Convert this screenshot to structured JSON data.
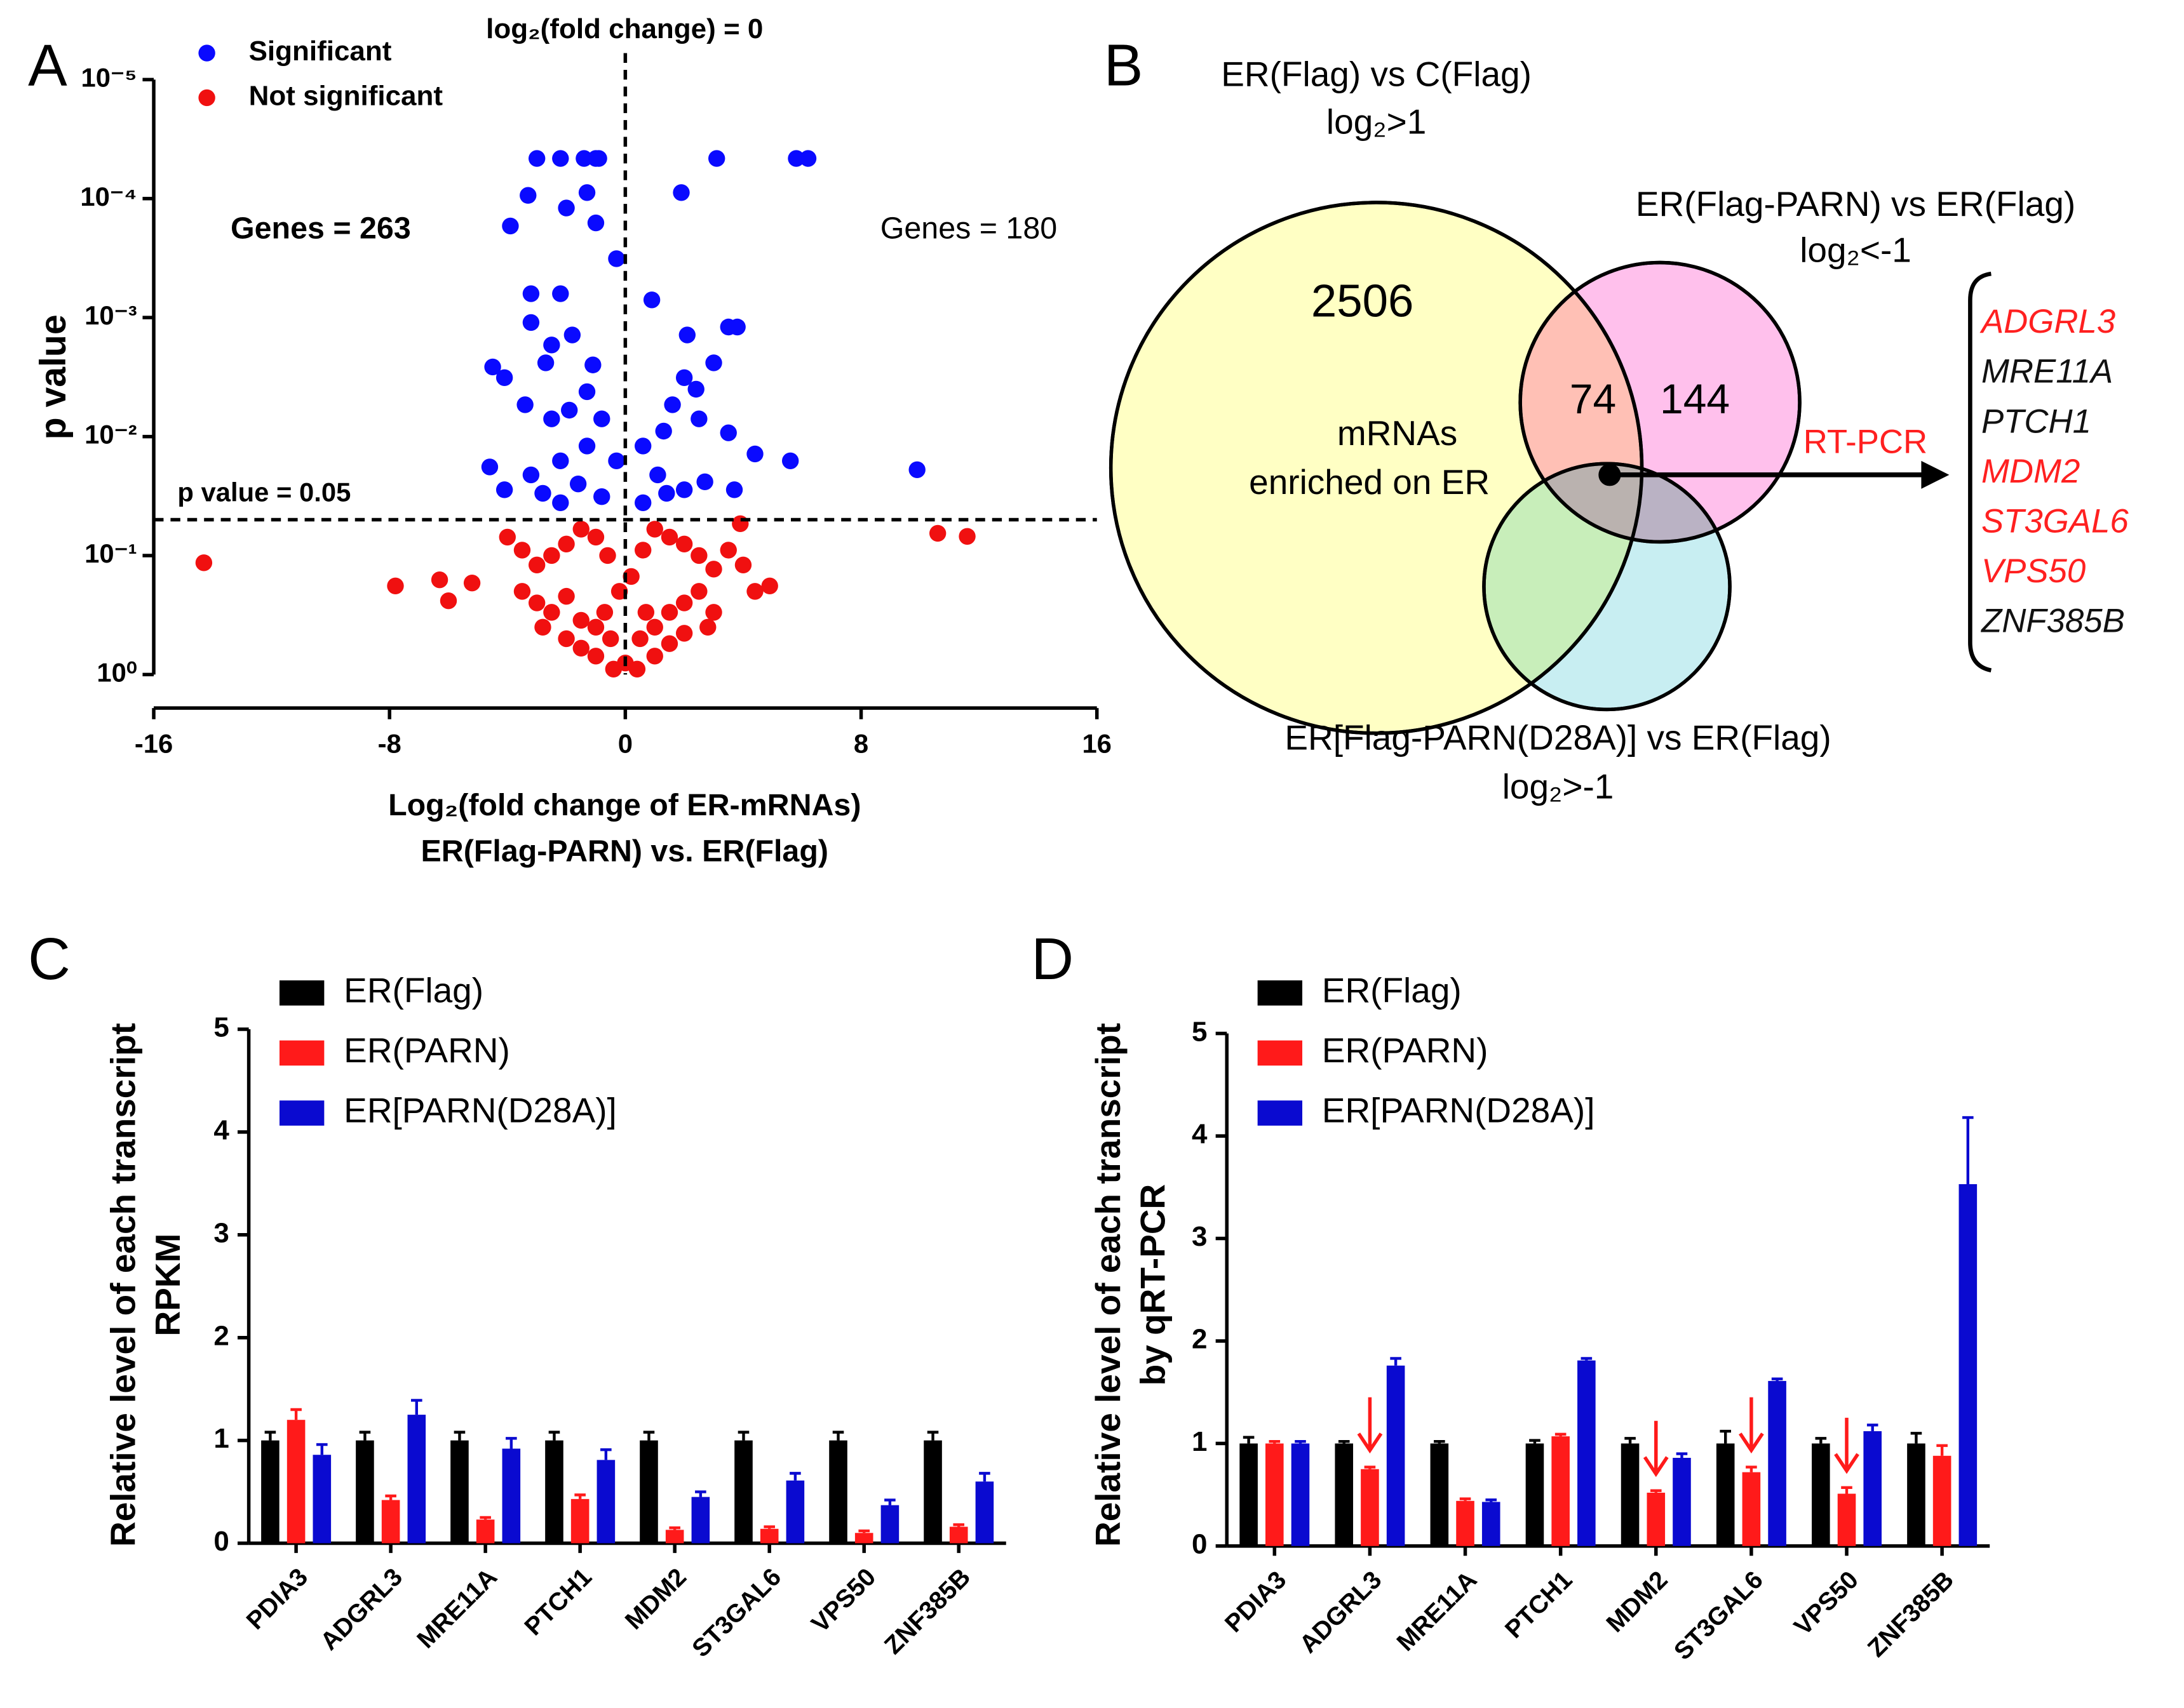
{
  "chart_data": [
    {
      "type": "scatter",
      "panel": "A",
      "xlabel": "Log₂(fold change of ER-mRNAs)",
      "xlabel2": "ER(Flag-PARN) vs. ER(Flag)",
      "ylabel": "p value",
      "log_y": true,
      "xlim": [
        -16,
        16
      ],
      "ylim": [
        1,
        1e-05
      ],
      "xticks": [
        -16,
        -8,
        0,
        8,
        16
      ],
      "yticks": [
        {
          "value": 1,
          "label": "10⁰"
        },
        {
          "value": 0.1,
          "label": "10⁻¹"
        },
        {
          "value": 0.01,
          "label": "10⁻²"
        },
        {
          "value": 0.001,
          "label": "10⁻³"
        },
        {
          "value": 0.0001,
          "label": "10⁻⁴"
        },
        {
          "value": 1e-05,
          "label": "10⁻⁵"
        }
      ],
      "threshold": {
        "label": "p value = 0.05",
        "value": 0.05
      },
      "zero_line": {
        "label": "log₂(fold change) = 0",
        "value": 0
      },
      "annotations": [
        "Genes = 263",
        "Genes = 180"
      ],
      "series": [
        {
          "name": "Significant",
          "color": "#0a0aff",
          "x": [
            -3.0,
            -2.2,
            -1.4,
            -1.0,
            -0.9,
            3.1,
            5.8,
            6.2,
            1.9,
            -1.3,
            -3.9,
            -3.3,
            -2.0,
            -1.0,
            -0.3,
            -3.2,
            -2.2,
            -3.2,
            -1.8,
            -2.7,
            -4.5,
            -4.1,
            -3.4,
            -2.5,
            -1.3,
            -0.8,
            0.9,
            2.1,
            3.5,
            3.8,
            3.0,
            2.0,
            1.6,
            2.5,
            3.5,
            4.4,
            5.6,
            9.9,
            -4.6,
            -4.1,
            -3.2,
            -2.2,
            -1.3,
            -0.3,
            0.6,
            1.1,
            2.0,
            2.7,
            -0.8,
            -2.2,
            0.6,
            3.7,
            -1.6,
            -2.8,
            1.4,
            -1.9,
            -1.1,
            1.3,
            -2.5,
            2.4
          ],
          "values": [
            4.6e-05,
            4.6e-05,
            4.6e-05,
            4.6e-05,
            4.6e-05,
            4.6e-05,
            4.6e-05,
            4.6e-05,
            8.9e-05,
            8.9e-05,
            0.00017,
            9.4e-05,
            0.00012,
            0.00016,
            0.00032,
            0.00063,
            0.00063,
            0.0011,
            0.0014,
            0.0024,
            0.0026,
            0.0032,
            0.0054,
            0.0071,
            0.0042,
            0.0071,
            0.00071,
            0.0014,
            0.0012,
            0.0012,
            0.0024,
            0.0032,
            0.0054,
            0.0071,
            0.0093,
            0.014,
            0.016,
            0.019,
            0.018,
            0.028,
            0.021,
            0.016,
            0.012,
            0.016,
            0.012,
            0.021,
            0.028,
            0.024,
            0.032,
            0.036,
            0.036,
            0.028,
            0.025,
            0.03,
            0.03,
            0.006,
            0.0025,
            0.009,
            0.0017,
            0.004
          ]
        },
        {
          "name": "Not significant",
          "color": "#f01010",
          "x": [
            -14.3,
            -7.8,
            -6.3,
            -6.0,
            -5.2,
            10.6,
            11.6,
            4.4,
            4.9,
            3.9,
            -4,
            -3.5,
            -3,
            -2.5,
            -2,
            -1.5,
            -1,
            -0.6,
            0.6,
            1,
            1.5,
            2,
            2.5,
            3,
            3.5,
            4,
            -3.5,
            -3,
            -2.5,
            -2,
            -1.5,
            -1,
            -0.5,
            0,
            0.5,
            1,
            1.5,
            2,
            2.5,
            3,
            -2,
            -1.5,
            -1,
            -0.4,
            0.4,
            1,
            1.5,
            2,
            -2.8,
            2.8,
            -0.2,
            0.2,
            -0.7,
            0.7
          ],
          "values": [
            0.115,
            0.18,
            0.16,
            0.24,
            0.17,
            0.065,
            0.069,
            0.2,
            0.18,
            0.054,
            0.07,
            0.09,
            0.12,
            0.1,
            0.08,
            0.06,
            0.07,
            0.1,
            0.09,
            0.06,
            0.07,
            0.08,
            0.1,
            0.13,
            0.09,
            0.12,
            0.2,
            0.25,
            0.3,
            0.22,
            0.35,
            0.4,
            0.5,
            0.8,
            0.5,
            0.4,
            0.3,
            0.25,
            0.2,
            0.3,
            0.5,
            0.6,
            0.7,
            0.9,
            0.9,
            0.7,
            0.55,
            0.45,
            0.4,
            0.4,
            0.2,
            0.15,
            0.3,
            0.3
          ]
        }
      ]
    },
    {
      "type": "venn",
      "panel": "B",
      "sets": [
        {
          "label": "ER(Flag) vs C(Flag)",
          "condition": "log₂>1"
        },
        {
          "label": "ER(Flag-PARN) vs ER(Flag)",
          "condition": "log₂<-1"
        },
        {
          "label": "ER[Flag-PARN(D28A)] vs ER(Flag)",
          "condition": "log₂>-1"
        }
      ],
      "counts": [
        2506,
        74,
        144
      ],
      "region_label": [
        "mRNAs",
        "enriched on ER"
      ],
      "method": "RT-PCR",
      "genes": [
        {
          "name": "ADGRL3",
          "color": "#ff2020"
        },
        {
          "name": "MRE11A",
          "color": "#111111"
        },
        {
          "name": "PTCH1",
          "color": "#111111"
        },
        {
          "name": "MDM2",
          "color": "#ff2020"
        },
        {
          "name": "ST3GAL6",
          "color": "#ff2020"
        },
        {
          "name": "VPS50",
          "color": "#ff2020"
        },
        {
          "name": "ZNF385B",
          "color": "#111111"
        }
      ]
    },
    {
      "type": "bar",
      "panel": "C",
      "ylabel": [
        "Relative level of each transcript",
        "RPKM"
      ],
      "categories": [
        "PDIA3",
        "ADGRL3",
        "MRE11A",
        "PTCH1",
        "MDM2",
        "ST3GAL6",
        "VPS50",
        "ZNF385B"
      ],
      "ylim": [
        0,
        5
      ],
      "yticks": [
        0,
        1,
        2,
        3,
        4,
        5
      ],
      "series": [
        {
          "name": "ER(Flag)",
          "color": "#000000",
          "values": [
            1,
            1,
            1,
            1,
            1,
            1,
            1,
            1
          ],
          "errors": [
            0.08,
            0.08,
            0.08,
            0.08,
            0.08,
            0.08,
            0.08,
            0.08
          ]
        },
        {
          "name": "ER(PARN)",
          "color": "#ff1a1a",
          "values": [
            1.2,
            0.42,
            0.23,
            0.43,
            0.13,
            0.14,
            0.1,
            0.16
          ],
          "errors": [
            0.1,
            0.04,
            0.02,
            0.04,
            0.02,
            0.02,
            0.02,
            0.02
          ]
        },
        {
          "name": "ER[PARN(D28A)]",
          "color": "#0a0ad0",
          "values": [
            0.86,
            1.25,
            0.92,
            0.81,
            0.45,
            0.61,
            0.37,
            0.6
          ],
          "errors": [
            0.1,
            0.14,
            0.1,
            0.1,
            0.05,
            0.07,
            0.05,
            0.08
          ]
        }
      ]
    },
    {
      "type": "bar",
      "panel": "D",
      "ylabel": [
        "Relative level of each transcript",
        "by qRT-PCR"
      ],
      "categories": [
        "PDIA3",
        "ADGRL3",
        "MRE11A",
        "PTCH1",
        "MDM2",
        "ST3GAL6",
        "VPS50",
        "ZNF385B"
      ],
      "ylim": [
        0,
        5
      ],
      "yticks": [
        0,
        1,
        2,
        3,
        4,
        5
      ],
      "series": [
        {
          "name": "ER(Flag)",
          "color": "#000000",
          "values": [
            1,
            1,
            1,
            1,
            1,
            1,
            1,
            1
          ],
          "errors": [
            0.06,
            0.02,
            0.02,
            0.03,
            0.05,
            0.12,
            0.05,
            0.1
          ]
        },
        {
          "name": "ER(PARN)",
          "color": "#ff1a1a",
          "values": [
            1,
            0.75,
            0.44,
            1.07,
            0.52,
            0.72,
            0.51,
            0.88
          ],
          "errors": [
            0.02,
            0.02,
            0.02,
            0.02,
            0.02,
            0.05,
            0.06,
            0.1
          ]
        },
        {
          "name": "ER[PARN(D28A)]",
          "color": "#0a0ad0",
          "values": [
            1,
            1.76,
            0.43,
            1.81,
            0.86,
            1.61,
            1.12,
            3.53
          ],
          "errors": [
            0.02,
            0.07,
            0.02,
            0.02,
            0.04,
            0.02,
            0.06,
            0.65
          ]
        }
      ]
    }
  ]
}
